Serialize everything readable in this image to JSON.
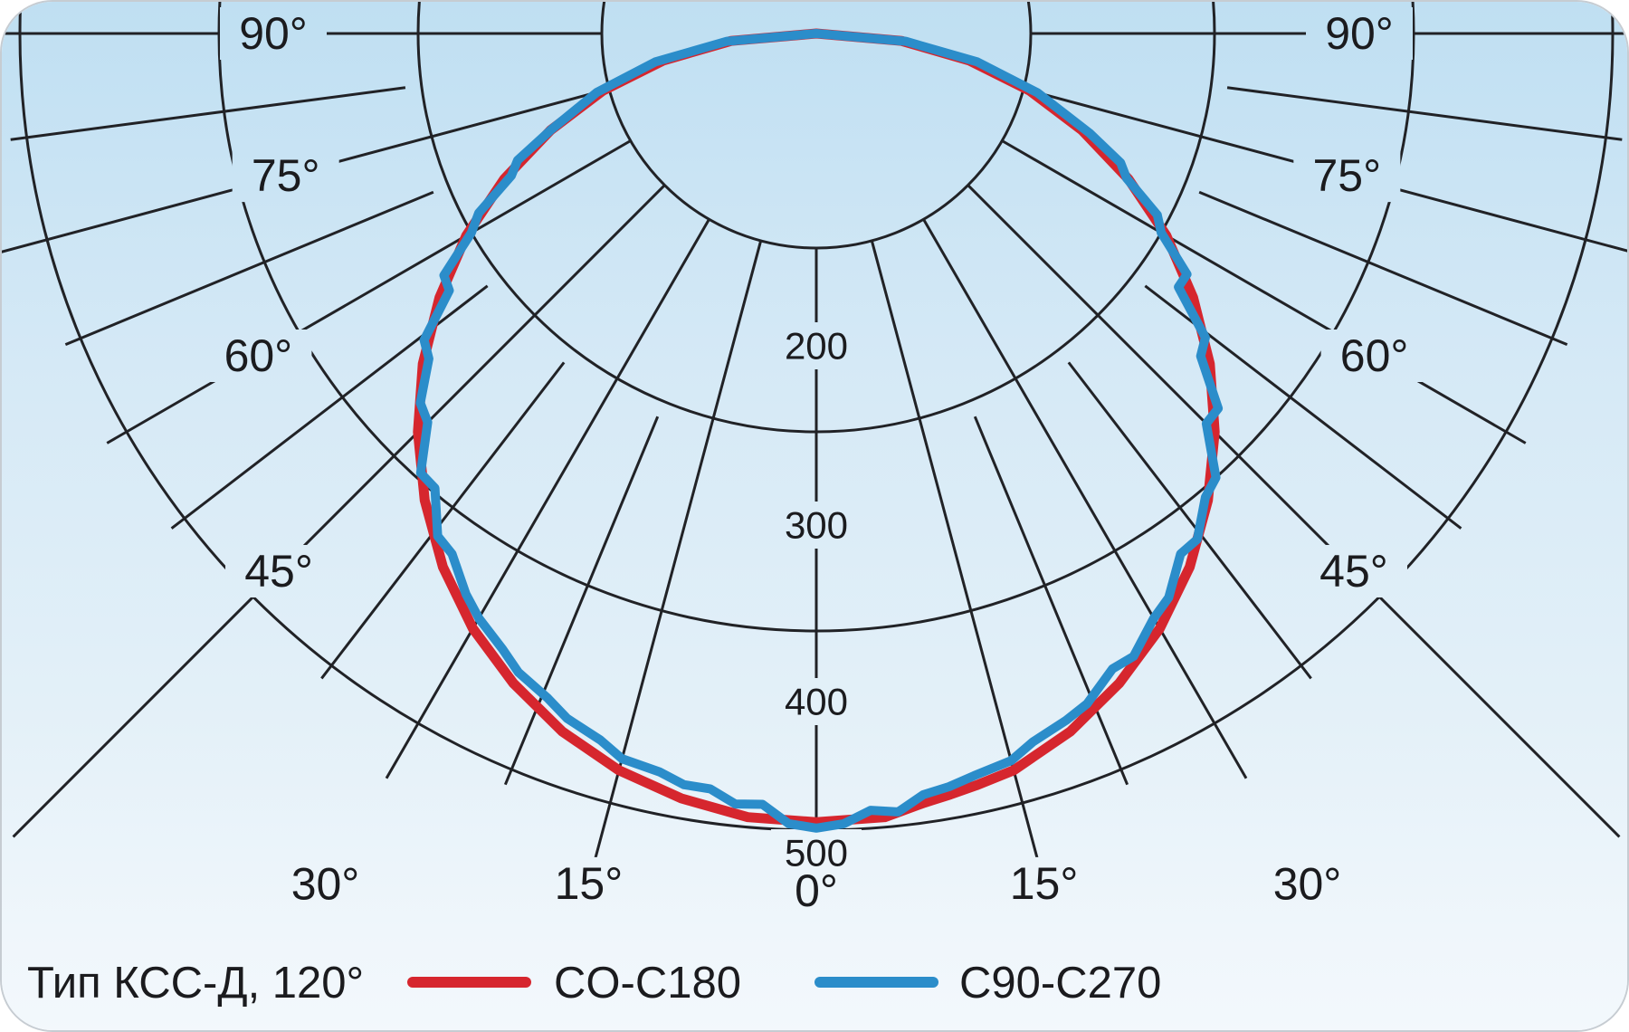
{
  "frame": {
    "bg_top": "#bfdff2",
    "bg_mid": "#d5e9f6",
    "bg_bottom": "#f3f8fc",
    "grid_color": "#212226",
    "text_color": "#1b1b1e"
  },
  "chart_data": {
    "type": "line",
    "subtype": "polar-photometric-curve",
    "title": "",
    "angle_axis": {
      "range_deg": [
        -90,
        90
      ],
      "zero_direction": "down",
      "major_step_deg": 15,
      "minor_step_deg": 7.5,
      "labels": [
        {
          "deg": -90,
          "text": "90°"
        },
        {
          "deg": -75,
          "text": "75°"
        },
        {
          "deg": -60,
          "text": "60°"
        },
        {
          "deg": -45,
          "text": "45°"
        },
        {
          "deg": -30,
          "text": "30°"
        },
        {
          "deg": -15,
          "text": "15°"
        },
        {
          "deg": 0,
          "text": "0°"
        },
        {
          "deg": 15,
          "text": "15°"
        },
        {
          "deg": 30,
          "text": "30°"
        },
        {
          "deg": 45,
          "text": "45°"
        },
        {
          "deg": 60,
          "text": "60°"
        },
        {
          "deg": 75,
          "text": "75°"
        },
        {
          "deg": 90,
          "text": "90°"
        }
      ]
    },
    "radial_axis": {
      "rlim": [
        0,
        500
      ],
      "circle_values": [
        100,
        200,
        300,
        400
      ],
      "tick_labels": [
        {
          "value": 200,
          "text": "200"
        },
        {
          "value": 300,
          "text": "300"
        },
        {
          "value": 400,
          "text": "400"
        },
        {
          "value": 500,
          "text": "500"
        }
      ]
    },
    "series": [
      {
        "name": "CO-C180",
        "color": "#d6262e",
        "angles_deg": [
          -90,
          -85,
          -80,
          -75,
          -70,
          -65,
          -60,
          -55,
          -50,
          -45,
          -40,
          -35,
          -30,
          -25,
          -20,
          -15,
          -10,
          -5,
          0,
          5,
          8,
          10,
          12,
          15,
          20,
          25,
          30,
          35,
          40,
          45,
          50,
          55,
          60,
          65,
          70,
          75,
          80,
          85,
          90
        ],
        "values": [
          0,
          43,
          78,
          111,
          142,
          173,
          203,
          231,
          258,
          283,
          306,
          327,
          345,
          360,
          373,
          383,
          390,
          395,
          396,
          395,
          390,
          388,
          386,
          383,
          373,
          360,
          345,
          327,
          306,
          283,
          258,
          231,
          203,
          173,
          142,
          111,
          78,
          43,
          0
        ]
      },
      {
        "name": "C90-C270",
        "color": "#2b8dca",
        "angles_deg": [
          -90,
          -85,
          -80,
          -75,
          -70,
          -67,
          -65,
          -62,
          -60,
          -57,
          -55,
          -52,
          -50,
          -47,
          -45,
          -42,
          -40,
          -37,
          -35,
          -32,
          -30,
          -27,
          -25,
          -22,
          -20,
          -17,
          -15,
          -12,
          -10,
          -8,
          -6,
          -4,
          -2,
          0,
          2,
          4,
          6,
          8,
          10,
          12,
          15,
          17,
          20,
          22,
          25,
          27,
          30,
          32,
          35,
          37,
          40,
          42,
          45,
          47,
          50,
          52,
          55,
          57,
          60,
          62,
          65,
          67,
          70,
          75,
          80,
          85,
          90
        ],
        "values": [
          0,
          45,
          82,
          114,
          142,
          163,
          169,
          192,
          200,
          223,
          225,
          250,
          254,
          272,
          276,
          297,
          298,
          316,
          319,
          332,
          339,
          347,
          354,
          360,
          366,
          371,
          377,
          379,
          383,
          383,
          389,
          388,
          397,
          399,
          397,
          391,
          393,
          386,
          384,
          381,
          378,
          372,
          367,
          363,
          352,
          351,
          339,
          334,
          319,
          318,
          304,
          300,
          277,
          276,
          252,
          248,
          222,
          222,
          200,
          194,
          172,
          166,
          146,
          115,
          82,
          45,
          0
        ]
      }
    ],
    "legend": {
      "position": "bottom-left",
      "type_label": "Тип КСС-Д, 120°",
      "entries": [
        {
          "label": "CO-C180",
          "color": "#d6262e"
        },
        {
          "label": "C90-C270",
          "color": "#2b8dca"
        }
      ]
    }
  }
}
